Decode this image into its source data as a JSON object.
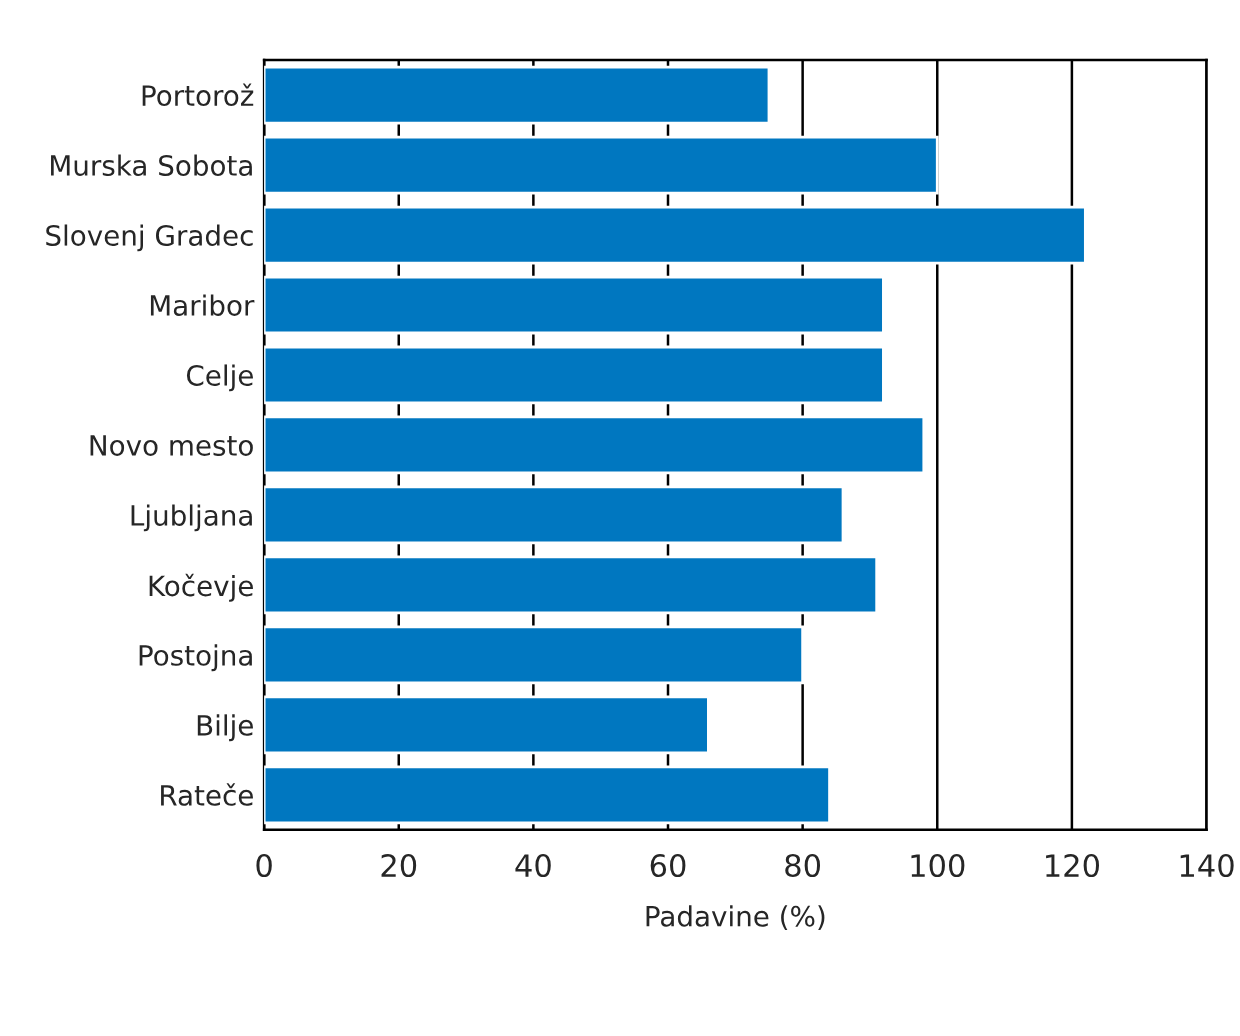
{
  "chart_data": {
    "type": "bar",
    "orientation": "horizontal",
    "xlabel": "Padavine (%)",
    "categories": [
      "Portorož",
      "Murska Sobota",
      "Slovenj Gradec",
      "Maribor",
      "Celje",
      "Novo mesto",
      "Ljubljana",
      "Kočevje",
      "Postojna",
      "Bilje",
      "Rateče"
    ],
    "values": [
      75,
      100,
      122,
      92,
      92,
      98,
      86,
      91,
      80,
      66,
      84
    ],
    "color": "#0077c0",
    "xlim": [
      0,
      140
    ],
    "xticks": [
      0,
      20,
      40,
      60,
      80,
      100,
      120,
      140
    ],
    "grid": "x",
    "legend": false
  }
}
